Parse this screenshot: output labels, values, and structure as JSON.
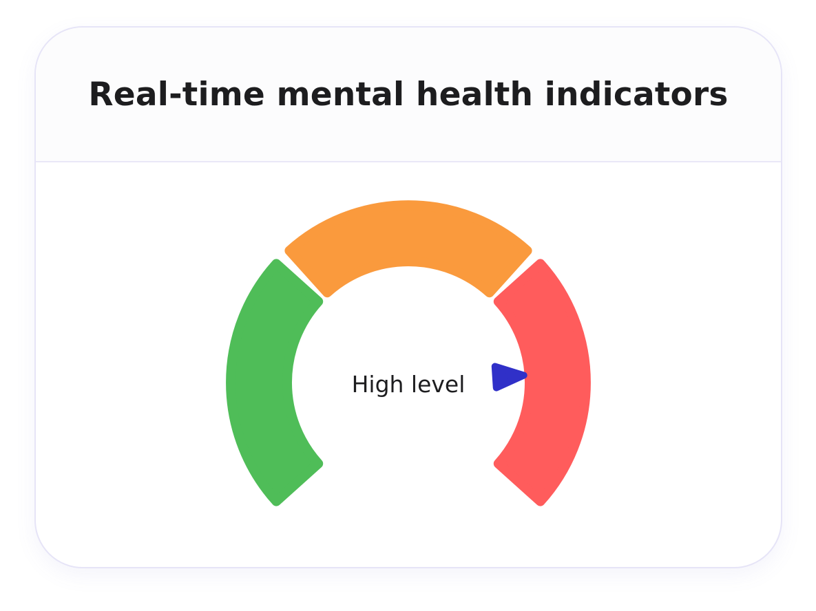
{
  "card": {
    "title": "Real-time mental health indicators"
  },
  "gauge": {
    "label": "High level",
    "segments": [
      {
        "name": "green",
        "color": "#4fbd58"
      },
      {
        "name": "orange",
        "color": "#fa9a3d"
      },
      {
        "name": "red",
        "color": "#ff5c5c"
      }
    ],
    "pointer_color": "#3030c8",
    "value_fraction": 0.82
  }
}
